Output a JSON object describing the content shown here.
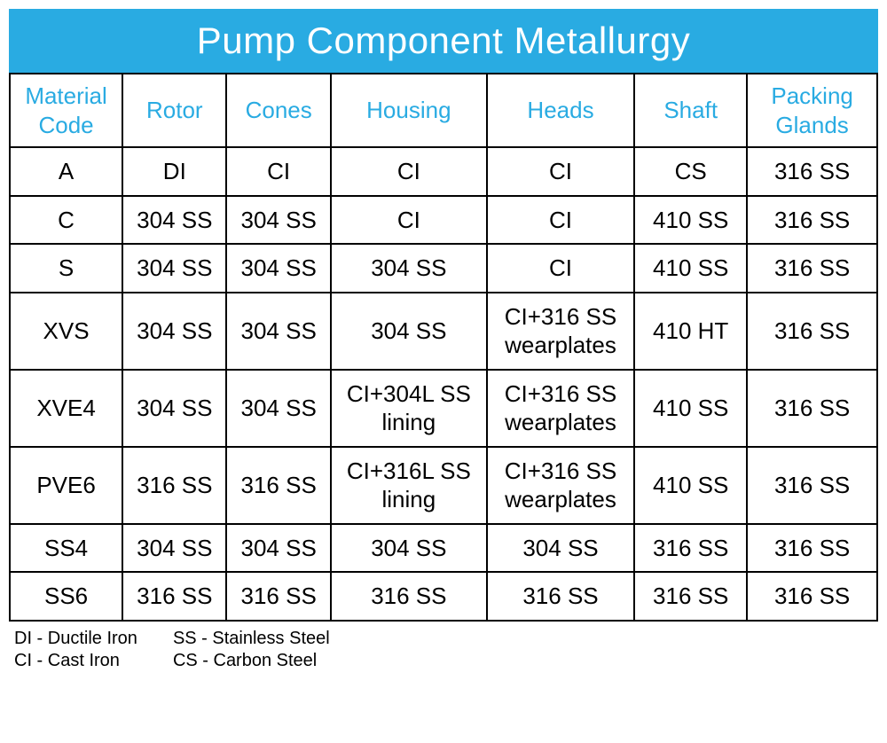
{
  "title": "Pump Component Metallurgy",
  "columns": [
    "Material Code",
    "Rotor",
    "Cones",
    "Housing",
    "Heads",
    "Shaft",
    "Packing Glands"
  ],
  "rows": [
    [
      "A",
      "DI",
      "CI",
      "CI",
      "CI",
      "CS",
      "316 SS"
    ],
    [
      "C",
      "304 SS",
      "304 SS",
      "CI",
      "CI",
      "410 SS",
      "316 SS"
    ],
    [
      "S",
      "304 SS",
      "304 SS",
      "304 SS",
      "CI",
      "410 SS",
      "316 SS"
    ],
    [
      "XVS",
      "304 SS",
      "304 SS",
      "304 SS",
      "CI+316 SS wearplates",
      "410 HT",
      "316 SS"
    ],
    [
      "XVE4",
      "304 SS",
      "304 SS",
      "CI+304L SS lining",
      "CI+316 SS wearplates",
      "410 SS",
      "316 SS"
    ],
    [
      "PVE6",
      "316 SS",
      "316 SS",
      "CI+316L SS lining",
      "CI+316 SS wearplates",
      "410 SS",
      "316 SS"
    ],
    [
      "SS4",
      "304 SS",
      "304 SS",
      "304 SS",
      "304 SS",
      "316 SS",
      "316 SS"
    ],
    [
      "SS6",
      "316 SS",
      "316 SS",
      "316 SS",
      "316 SS",
      "316 SS",
      "316 SS"
    ]
  ],
  "legend": {
    "col1": [
      "DI - Ductile Iron",
      "CI - Cast Iron"
    ],
    "col2": [
      "SS - Stainless Steel",
      "CS - Carbon Steel"
    ]
  },
  "colors": {
    "title_bg": "#29abe2",
    "title_text": "#ffffff",
    "header_text": "#29abe2",
    "cell_text": "#000000",
    "border": "#000000",
    "background": "#ffffff"
  },
  "fontsize": {
    "title": 42,
    "header": 26,
    "cell": 26,
    "legend": 20
  }
}
